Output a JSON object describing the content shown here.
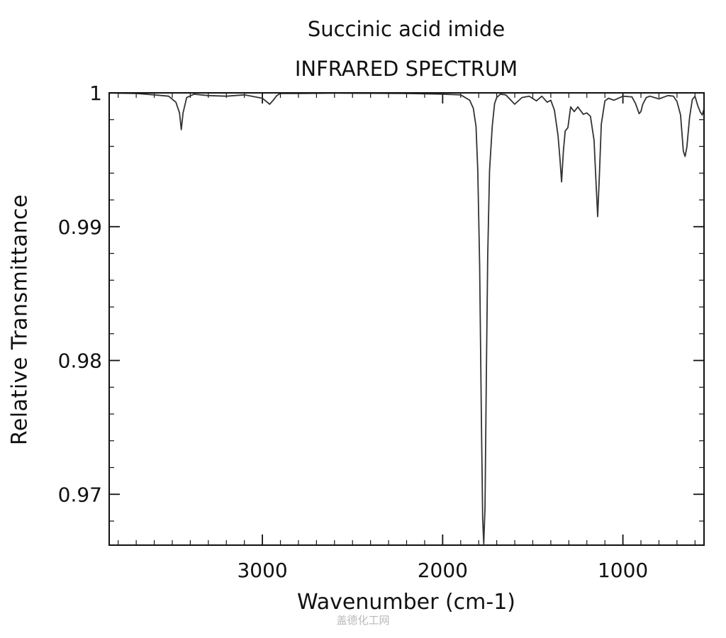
{
  "chart_data": {
    "type": "line",
    "title": "Succinic acid imide",
    "subtitle": "INFRARED SPECTRUM",
    "xlabel": "Wavenumber (cm-1)",
    "ylabel": "Relative Transmittance",
    "xlim": [
      3850,
      550
    ],
    "ylim": [
      0.9662,
      1.0
    ],
    "x_inverted": true,
    "grid": false,
    "x_ticks": [
      {
        "value": 3000,
        "label": "3000"
      },
      {
        "value": 2000,
        "label": "2000"
      },
      {
        "value": 1000,
        "label": "1000"
      }
    ],
    "y_ticks": [
      {
        "value": 1.0,
        "label": "1"
      },
      {
        "value": 0.99,
        "label": "0.99"
      },
      {
        "value": 0.98,
        "label": "0.98"
      },
      {
        "value": 0.97,
        "label": "0.97"
      }
    ],
    "series": [
      {
        "line_color": "#333333",
        "x": [
          3850,
          3700,
          3600,
          3520,
          3480,
          3460,
          3450,
          3440,
          3420,
          3380,
          3300,
          3200,
          3100,
          3000,
          2960,
          2940,
          2920,
          2900,
          2800,
          2600,
          2400,
          2200,
          2000,
          1900,
          1850,
          1830,
          1815,
          1805,
          1795,
          1785,
          1778,
          1772,
          1765,
          1758,
          1750,
          1740,
          1725,
          1712,
          1700,
          1680,
          1650,
          1600,
          1560,
          1520,
          1480,
          1450,
          1420,
          1400,
          1380,
          1360,
          1350,
          1340,
          1330,
          1320,
          1305,
          1290,
          1270,
          1250,
          1220,
          1200,
          1180,
          1160,
          1150,
          1140,
          1130,
          1120,
          1100,
          1080,
          1050,
          1000,
          950,
          930,
          910,
          900,
          890,
          870,
          850,
          800,
          750,
          720,
          700,
          680,
          665,
          655,
          645,
          630,
          615,
          600,
          585,
          570,
          560,
          550
        ],
        "y": [
          0.99999,
          0.99995,
          0.99985,
          0.99975,
          0.9993,
          0.9985,
          0.99725,
          0.9985,
          0.99965,
          0.9999,
          0.9998,
          0.99975,
          0.99985,
          0.9996,
          0.99915,
          0.99945,
          0.9998,
          0.99995,
          0.99995,
          0.99998,
          0.99997,
          0.99995,
          0.9999,
          0.99985,
          0.99945,
          0.99885,
          0.9975,
          0.9942,
          0.9872,
          0.9756,
          0.9682,
          0.9663,
          0.969,
          0.9785,
          0.9878,
          0.9942,
          0.9975,
          0.9992,
          0.99965,
          0.9999,
          0.99985,
          0.99915,
          0.99965,
          0.99975,
          0.9994,
          0.99975,
          0.9993,
          0.99945,
          0.9987,
          0.9968,
          0.9952,
          0.99335,
          0.9957,
          0.99715,
          0.9974,
          0.99895,
          0.9986,
          0.99895,
          0.9984,
          0.9985,
          0.99825,
          0.99645,
          0.9935,
          0.99075,
          0.99395,
          0.99765,
          0.9994,
          0.9996,
          0.99945,
          0.99975,
          0.9997,
          0.9992,
          0.99845,
          0.9986,
          0.99915,
          0.99965,
          0.99975,
          0.99955,
          0.9998,
          0.99975,
          0.99935,
          0.99835,
          0.99565,
          0.99525,
          0.99595,
          0.9982,
          0.9995,
          0.99975,
          0.99905,
          0.99855,
          0.99835,
          0.9988
        ]
      }
    ]
  },
  "watermark": "盖德化工网"
}
